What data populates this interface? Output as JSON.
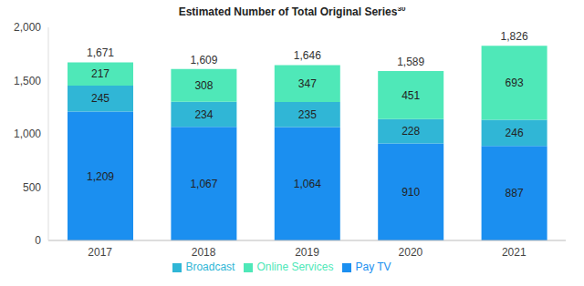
{
  "chart_data": {
    "type": "bar",
    "title": "Estimated Number of Total Original Series",
    "annotations": [
      "30"
    ],
    "categories": [
      "2017",
      "2018",
      "2019",
      "2020",
      "2021"
    ],
    "series": [
      {
        "name": "Pay TV",
        "color": "#1b8ff0",
        "values": [
          1209,
          1067,
          1064,
          910,
          887
        ],
        "value_labels": [
          "1,209",
          "1,067",
          "1,064",
          "910",
          "887"
        ]
      },
      {
        "name": "Broadcast",
        "color": "#30b6d6",
        "values": [
          245,
          234,
          235,
          228,
          246
        ],
        "value_labels": [
          "245",
          "234",
          "235",
          "228",
          "246"
        ]
      },
      {
        "name": "Online Services",
        "color": "#4fe8b8",
        "values": [
          217,
          308,
          347,
          451,
          693
        ],
        "value_labels": [
          "217",
          "308",
          "347",
          "451",
          "693"
        ]
      }
    ],
    "totals": [
      1671,
      1609,
      1646,
      1589,
      1826
    ],
    "total_labels": [
      "1,671",
      "1,609",
      "1,646",
      "1,589",
      "1,826"
    ],
    "ylim": [
      0,
      2000
    ],
    "yticks": [
      0,
      500,
      {
        "value": 1000,
        "label": "1,000"
      },
      {
        "value": 1500,
        "label": "1,500"
      },
      {
        "value": 2000,
        "label": "2,000"
      }
    ],
    "stacked": true,
    "data_labels": true,
    "grid": false,
    "legend": "bottom"
  }
}
